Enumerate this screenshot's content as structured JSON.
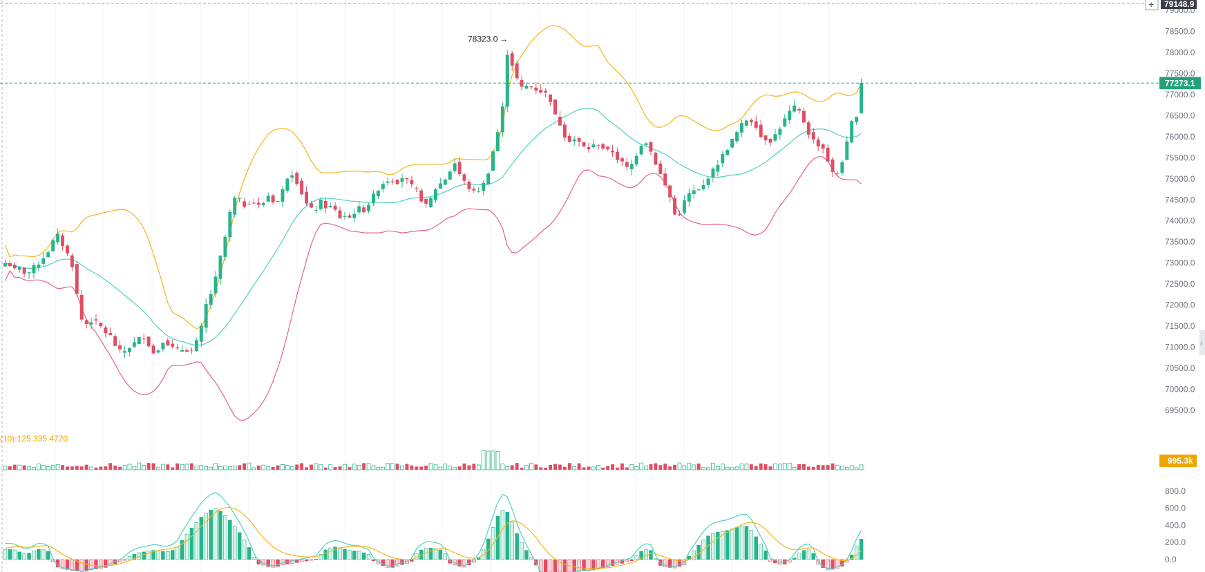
{
  "chart_data": {
    "type": "candlestick",
    "price_axis": {
      "ticks": [
        "79000.0",
        "78500.0",
        "78000.0",
        "77500.0",
        "77000.0",
        "76500.0",
        "76000.0",
        "75500.0",
        "75000.0",
        "74500.0",
        "74000.0",
        "73500.0",
        "73000.0",
        "72500.0",
        "72000.0",
        "71500.0",
        "71000.0",
        "70500.0",
        "70000.0",
        "69500.0"
      ],
      "range": [
        69300,
        79250
      ]
    },
    "top_marker": {
      "label": "79148.9",
      "value": 79148.9
    },
    "current_price": {
      "label": "77273.1",
      "value": 77273.1
    },
    "peak_annotation": {
      "label": "78323.0",
      "value": 78323.0
    },
    "volume_indicator": {
      "label": "(10):125,335.4720",
      "current_label": "995.3k"
    },
    "macd_axis": {
      "ticks": [
        "800.0",
        "600.0",
        "400.0",
        "200.0",
        "0.0"
      ],
      "range": [
        -150,
        900
      ]
    },
    "candles_anchor": [
      73000,
      72950,
      72800,
      72900,
      72700,
      72850,
      72950,
      73100,
      73250,
      73500,
      73650,
      73400,
      73150,
      72850,
      71800,
      71500,
      71650,
      71600,
      71500,
      71350,
      71250,
      71000,
      70850,
      70950,
      71050,
      71150,
      71300,
      71100,
      70850,
      70950,
      71200,
      71050,
      70950,
      70900,
      71000,
      70850,
      71050,
      71400,
      72000,
      72300,
      72700,
      73300,
      73800,
      74500,
      74550,
      74350,
      74450,
      74450,
      74350,
      74450,
      74650,
      74400,
      74500,
      74950,
      75200,
      75000,
      74700,
      74400,
      74250,
      74300,
      74500,
      74250,
      74400,
      74050,
      74150,
      74050,
      74200,
      74300,
      74250,
      74450,
      74650,
      74850,
      74950,
      75000,
      74900,
      75050,
      74950,
      74800,
      74700,
      74450,
      74300,
      74700,
      74850,
      74950,
      75150,
      75400,
      75100,
      74900,
      74750,
      74650,
      74800,
      74950,
      75500,
      76000,
      76500,
      78000,
      77700,
      77300,
      77100,
      77250,
      77150,
      77100,
      77050,
      76950,
      76500,
      76300,
      76000,
      75900,
      75950,
      75800,
      75700,
      75750,
      75850,
      75750,
      75650,
      75650,
      75450,
      75350,
      75200,
      75450,
      75750,
      75950,
      75700,
      75400,
      75100,
      74800,
      74500,
      74000,
      74300,
      74600,
      74700,
      74700,
      74800,
      75050,
      75200,
      75400,
      75600,
      75800,
      76000,
      76200,
      76400,
      76400,
      76300,
      76000,
      75950,
      75900,
      76100,
      76300,
      76500,
      76700,
      76650,
      76400,
      76100,
      75900,
      75800,
      75700,
      75300,
      75000,
      75300,
      75650,
      76300,
      76450,
      77300
    ],
    "macd_anchor": [
      120,
      120,
      110,
      80,
      60,
      90,
      120,
      120,
      100,
      -30,
      -100,
      -110,
      -120,
      -130,
      -140,
      -140,
      -120,
      -110,
      -100,
      -90,
      -60,
      -40,
      -20,
      30,
      60,
      80,
      90,
      100,
      110,
      100,
      90,
      100,
      130,
      220,
      300,
      380,
      450,
      520,
      560,
      600,
      580,
      520,
      460,
      380,
      300,
      200,
      100,
      -50,
      -60,
      -80,
      -90,
      -80,
      -60,
      -50,
      -40,
      -30,
      -20,
      -10,
      0,
      60,
      120,
      140,
      150,
      130,
      110,
      100,
      100,
      80,
      60,
      -30,
      -60,
      -80,
      -100,
      -80,
      -60,
      -50,
      -20,
      80,
      120,
      140,
      130,
      120,
      100,
      -40,
      -60,
      -80,
      -90,
      -50,
      -20,
      60,
      200,
      350,
      500,
      580,
      550,
      400,
      250,
      150,
      50,
      -40,
      -150,
      -200,
      -200,
      -200,
      -180,
      -160,
      -150,
      -140,
      -130,
      -130,
      -120,
      -110,
      -100,
      -80,
      -60,
      -50,
      -30,
      -20,
      50,
      100,
      120,
      100,
      -60,
      -80,
      -90,
      -100,
      -80,
      -60,
      60,
      120,
      200,
      260,
      300,
      320,
      330,
      340,
      360,
      380,
      400,
      380,
      300,
      200,
      120,
      -20,
      -40,
      -60,
      -50,
      -20,
      60,
      100,
      120,
      80,
      -60,
      -100,
      -120,
      -110,
      -90,
      -60,
      30,
      150,
      240
    ]
  }
}
